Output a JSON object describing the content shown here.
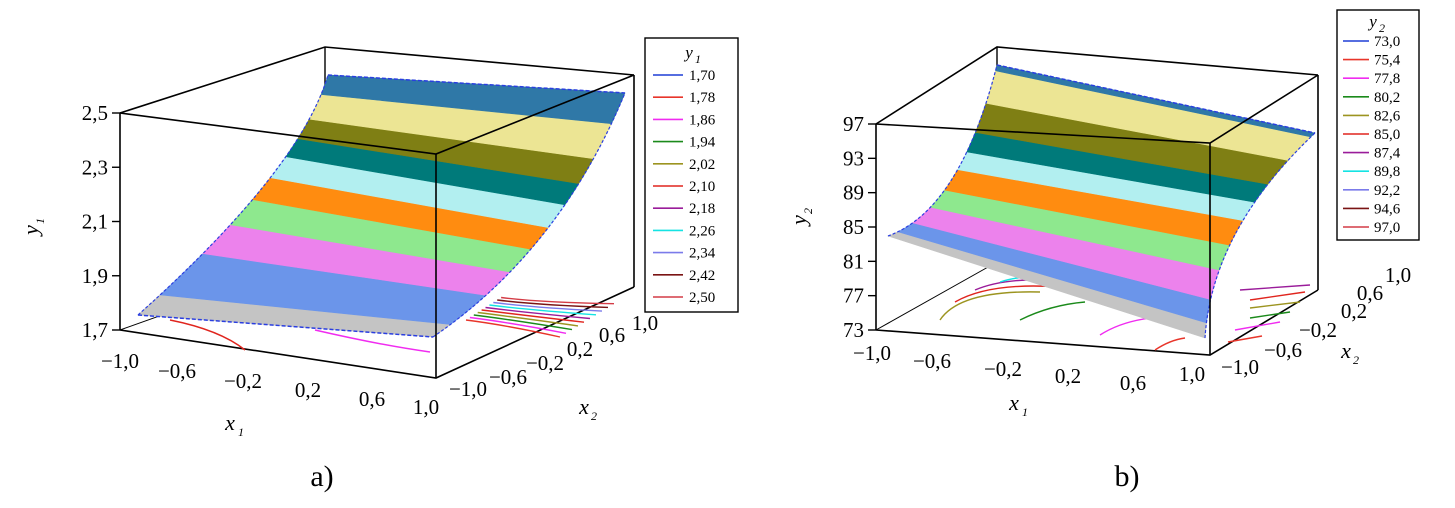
{
  "chart_data": [
    {
      "type": "surface",
      "panel_label": "a)",
      "x1_label": "x",
      "x1_sub": "1",
      "x2_label": "x",
      "x2_sub": "2",
      "z_label": "y",
      "z_sub": "1",
      "x1_ticks": [
        "−1,0",
        "−0,6",
        "−0,2",
        "0,2",
        "0,6",
        "1,0"
      ],
      "x2_ticks": [
        "−1,0",
        "−0,6",
        "−0,2",
        "0,2",
        "0,6",
        "1,0"
      ],
      "z_ticks": [
        "1,7",
        "1,9",
        "2,1",
        "2,3",
        "2,5"
      ],
      "zlim": [
        1.7,
        2.5
      ],
      "legend_title": "y",
      "legend_title_sub": "1",
      "legend": [
        {
          "label": "1,70",
          "color": "#1f3fd6"
        },
        {
          "label": "1,78",
          "color": "#e8352a"
        },
        {
          "label": "1,86",
          "color": "#f02cf0"
        },
        {
          "label": "1,94",
          "color": "#1b8a1b"
        },
        {
          "label": "2,02",
          "color": "#9c9420"
        },
        {
          "label": "2,10",
          "color": "#e0251e"
        },
        {
          "label": "2,18",
          "color": "#9a1c9a"
        },
        {
          "label": "2,26",
          "color": "#15e3e3"
        },
        {
          "label": "2,34",
          "color": "#7b7bea"
        },
        {
          "label": "2,42",
          "color": "#7a1414"
        },
        {
          "label": "2,50",
          "color": "#d43c46"
        }
      ],
      "surface_bands": [
        "#c4c4c4",
        "#6b95ea",
        "#ec82ec",
        "#8ee88e",
        "#ff8c10",
        "#b2eff0",
        "#007a7a",
        "#7f7f14",
        "#ece594",
        "#2f78a7"
      ]
    },
    {
      "type": "surface",
      "panel_label": "b)",
      "x1_label": "x",
      "x1_sub": "1",
      "x2_label": "x",
      "x2_sub": "2",
      "z_label": "y",
      "z_sub": "2",
      "x1_ticks": [
        "−1,0",
        "−0,6",
        "−0,2",
        "0,2",
        "0,6",
        "1,0"
      ],
      "x2_ticks": [
        "−1,0",
        "−0,6",
        "−0,2",
        "0,2",
        "0,6",
        "1,0"
      ],
      "z_ticks": [
        "73",
        "77",
        "81",
        "85",
        "89",
        "93",
        "97"
      ],
      "zlim": [
        73,
        97
      ],
      "legend_title": "y",
      "legend_title_sub": "2",
      "legend": [
        {
          "label": "73,0",
          "color": "#1f3fd6"
        },
        {
          "label": "75,4",
          "color": "#e8352a"
        },
        {
          "label": "77,8",
          "color": "#f02cf0"
        },
        {
          "label": "80,2",
          "color": "#1b8a1b"
        },
        {
          "label": "82,6",
          "color": "#9c9420"
        },
        {
          "label": "85,0",
          "color": "#e0251e"
        },
        {
          "label": "87,4",
          "color": "#9a1c9a"
        },
        {
          "label": "89,8",
          "color": "#15e3e3"
        },
        {
          "label": "92,2",
          "color": "#7b7bea"
        },
        {
          "label": "94,6",
          "color": "#7a1414"
        },
        {
          "label": "97,0",
          "color": "#d43c46"
        }
      ],
      "surface_bands": [
        "#c4c4c4",
        "#6b95ea",
        "#ec82ec",
        "#8ee88e",
        "#ff8c10",
        "#b2eff0",
        "#007a7a",
        "#7f7f14",
        "#ece594",
        "#2f78a7"
      ]
    }
  ]
}
